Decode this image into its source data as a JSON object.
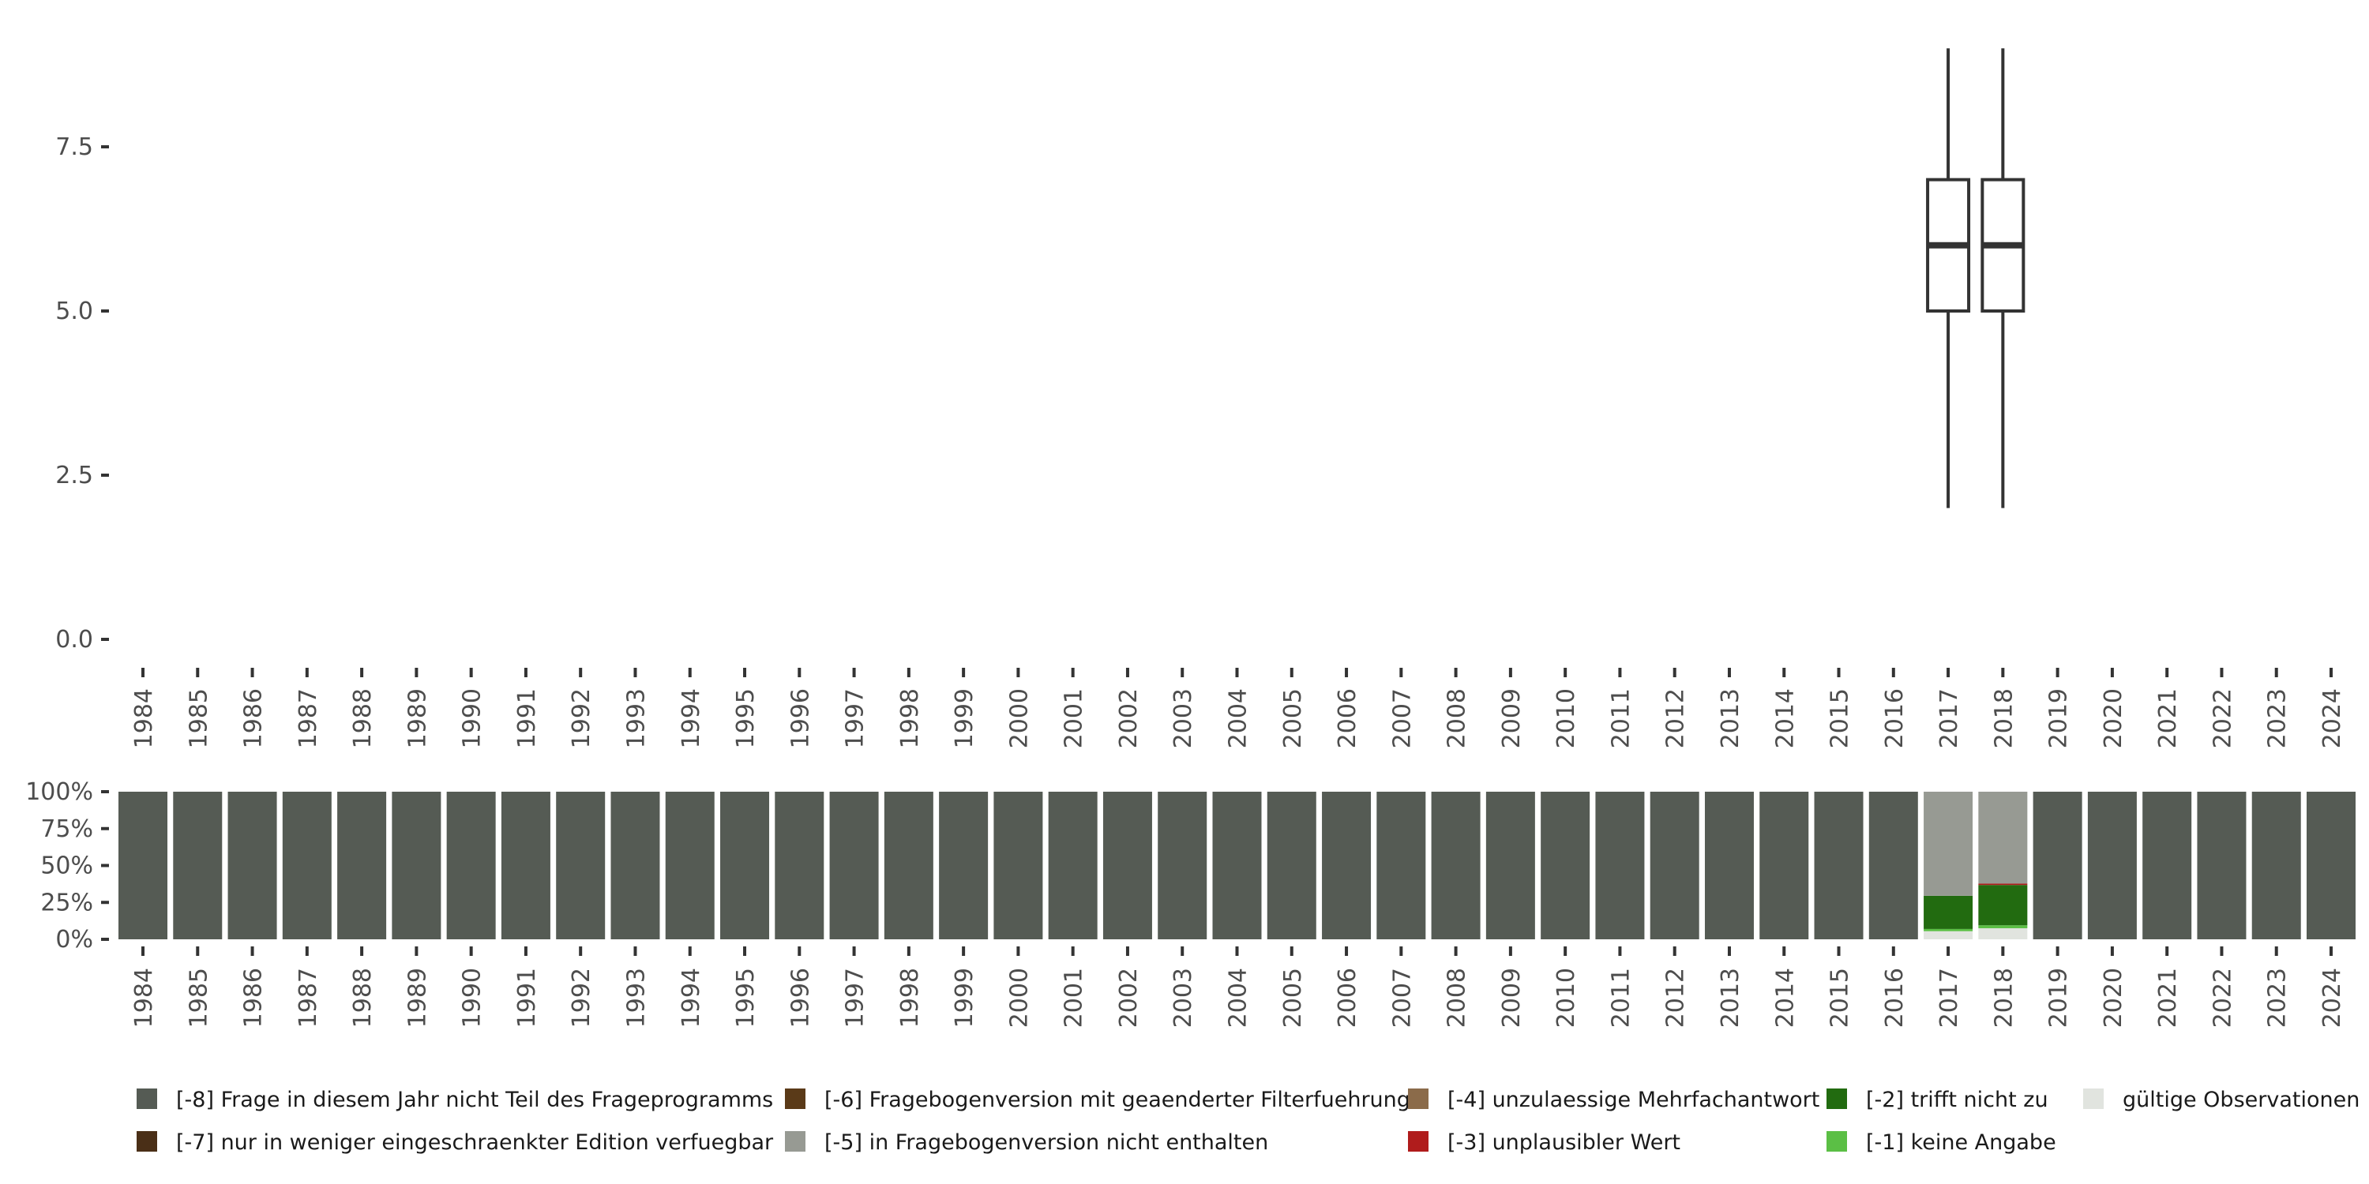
{
  "chart_data": [
    {
      "type": "boxplot",
      "title": "",
      "xlabel": "",
      "ylabel": "",
      "ylim": [
        -0.3,
        9.3
      ],
      "yticks": [
        "0.0",
        "2.5",
        "5.0",
        "7.5"
      ],
      "ytick_values": [
        0,
        2.5,
        5,
        7.5
      ],
      "grid": false,
      "boxes": [
        {
          "year": "2017",
          "min": 2,
          "q1": 5,
          "median": 6,
          "q3": 7,
          "max": 9
        },
        {
          "year": "2018",
          "min": 2,
          "q1": 5,
          "median": 6,
          "q3": 7,
          "max": 9
        }
      ]
    },
    {
      "type": "bar",
      "stacked": true,
      "ylim": [
        0,
        100
      ],
      "yticks": [
        "0%",
        "25%",
        "50%",
        "75%",
        "100%"
      ],
      "ytick_values": [
        0,
        25,
        50,
        75,
        100
      ],
      "legend_position": "bottom",
      "series_order_bottom_up": [
        "valid",
        "m1",
        "m2",
        "m3",
        "m4",
        "m5",
        "m6",
        "m7",
        "m8"
      ],
      "legend": [
        {
          "key": "m8",
          "label": "[-8] Frage in diesem Jahr nicht Teil des Frageprogramms",
          "color": "#555b54"
        },
        {
          "key": "m7",
          "label": "[-7] nur in weniger eingeschraenkter Edition verfuegbar",
          "color": "#4a2f17"
        },
        {
          "key": "m6",
          "label": "[-6] Fragebogenversion mit geaenderter Filterfuehrung",
          "color": "#5a3a18"
        },
        {
          "key": "m5",
          "label": "[-5] in Fragebogenversion nicht enthalten",
          "color": "#979a93"
        },
        {
          "key": "m4",
          "label": "[-4] unzulaessige Mehrfachantwort",
          "color": "#8b6b4a"
        },
        {
          "key": "m3",
          "label": "[-3] unplausibler Wert",
          "color": "#b01c1c"
        },
        {
          "key": "m2",
          "label": "[-2] trifft nicht zu",
          "color": "#226b10"
        },
        {
          "key": "m1",
          "label": "[-1] keine Angabe",
          "color": "#5bbf45"
        },
        {
          "key": "valid",
          "label": "gültige Observationen",
          "color": "#e1e4df"
        }
      ],
      "special_years": {
        "2017": {
          "valid": 5.5,
          "m1": 1.5,
          "m2": 22.5,
          "m3": 0,
          "m5": 70.5
        },
        "2018": {
          "valid": 7.5,
          "m1": 2,
          "m2": 27.3,
          "m3": 0.9,
          "m5": 62.3
        }
      },
      "default_year": {
        "m8": 100
      }
    }
  ],
  "years": [
    "1984",
    "1985",
    "1986",
    "1987",
    "1988",
    "1989",
    "1990",
    "1991",
    "1992",
    "1993",
    "1994",
    "1995",
    "1996",
    "1997",
    "1998",
    "1999",
    "2000",
    "2001",
    "2002",
    "2003",
    "2004",
    "2005",
    "2006",
    "2007",
    "2008",
    "2009",
    "2010",
    "2011",
    "2012",
    "2013",
    "2014",
    "2015",
    "2016",
    "2017",
    "2018",
    "2019",
    "2020",
    "2021",
    "2022",
    "2023",
    "2024"
  ]
}
